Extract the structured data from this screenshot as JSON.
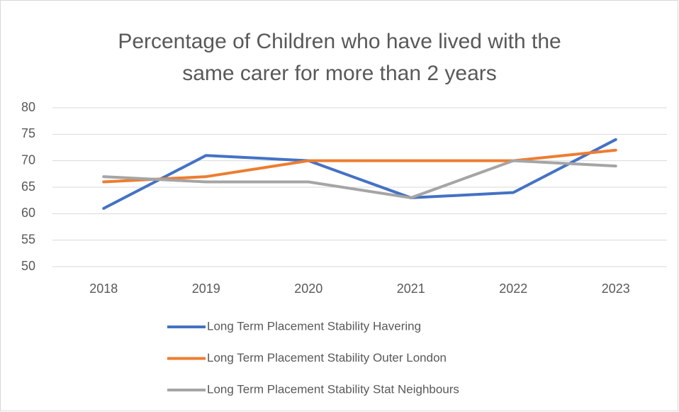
{
  "chart_data": {
    "type": "line",
    "title": [
      "Percentage of Children who have lived with the",
      "same carer for more than 2 years"
    ],
    "categories": [
      "2018",
      "2019",
      "2020",
      "2021",
      "2022",
      "2023"
    ],
    "series": [
      {
        "name": "Long Term Placement Stability Havering",
        "color": "#4472c4",
        "values": [
          61,
          71,
          70,
          63,
          64,
          74
        ]
      },
      {
        "name": "Long Term Placement Stability Outer London",
        "color": "#ed7d31",
        "values": [
          66,
          67,
          70,
          70,
          70,
          72
        ]
      },
      {
        "name": "Long Term Placement Stability Stat Neighbours",
        "color": "#a5a5a5",
        "values": [
          67,
          66,
          66,
          63,
          70,
          69
        ]
      }
    ],
    "ylim": [
      50,
      80
    ],
    "yticks": [
      50,
      55,
      60,
      65,
      70,
      75,
      80
    ],
    "grid": true,
    "legend": "bottom"
  }
}
